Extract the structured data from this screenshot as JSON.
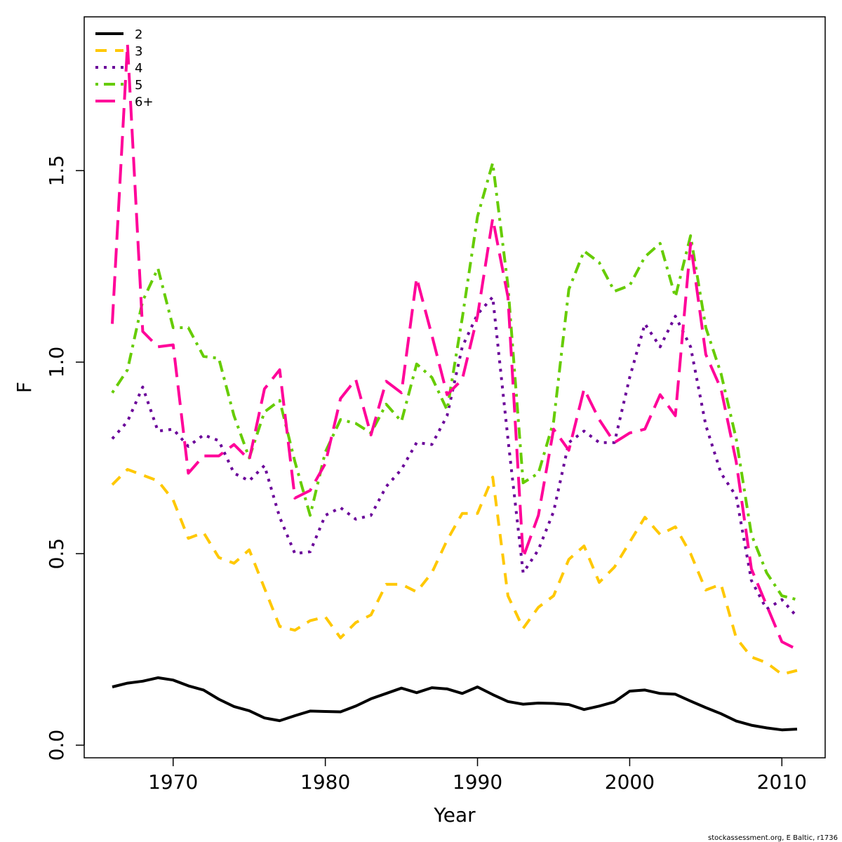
{
  "chart_data": {
    "type": "line",
    "title": "",
    "xlabel": "Year",
    "ylabel": "F",
    "xlim": [
      1965,
      2012
    ],
    "ylim": [
      0,
      1.85
    ],
    "x_ticks": [
      1970,
      1980,
      1990,
      2000,
      2010
    ],
    "y_ticks": [
      0.0,
      0.5,
      1.0,
      1.5
    ],
    "y_tick_labels": [
      "0.0",
      "0.5",
      "1.0",
      "1.5"
    ],
    "legend_position": "top-left",
    "grid": false,
    "x": [
      1966,
      1967,
      1968,
      1969,
      1970,
      1971,
      1972,
      1973,
      1974,
      1975,
      1976,
      1977,
      1978,
      1979,
      1980,
      1981,
      1982,
      1983,
      1984,
      1985,
      1986,
      1987,
      1988,
      1989,
      1990,
      1991,
      1992,
      1993,
      1994,
      1995,
      1996,
      1997,
      1998,
      1999,
      2000,
      2001,
      2002,
      2003,
      2004,
      2005,
      2006,
      2007,
      2008,
      2009,
      2010,
      2011
    ],
    "series": [
      {
        "name": "2",
        "color": "#000000",
        "dash": "solid",
        "values": [
          0.152,
          0.162,
          0.167,
          0.176,
          0.17,
          0.155,
          0.144,
          0.12,
          0.101,
          0.09,
          0.071,
          0.064,
          0.077,
          0.089,
          0.088,
          0.087,
          0.102,
          0.121,
          0.135,
          0.149,
          0.137,
          0.15,
          0.147,
          0.135,
          0.152,
          0.132,
          0.114,
          0.107,
          0.11,
          0.109,
          0.106,
          0.093,
          0.102,
          0.113,
          0.141,
          0.144,
          0.135,
          0.133,
          0.115,
          0.098,
          0.082,
          0.063,
          0.052,
          0.045,
          0.04,
          0.042
        ]
      },
      {
        "name": "3",
        "color": "#FFC800",
        "dash": "dashed",
        "values": [
          0.68,
          0.72,
          0.705,
          0.69,
          0.64,
          0.54,
          0.555,
          0.49,
          0.475,
          0.51,
          0.41,
          0.31,
          0.3,
          0.325,
          0.335,
          0.28,
          0.32,
          0.34,
          0.42,
          0.42,
          0.4,
          0.45,
          0.535,
          0.605,
          0.605,
          0.7,
          0.39,
          0.305,
          0.36,
          0.39,
          0.485,
          0.52,
          0.425,
          0.465,
          0.53,
          0.595,
          0.55,
          0.57,
          0.5,
          0.405,
          0.42,
          0.28,
          0.23,
          0.215,
          0.185,
          0.195
        ]
      },
      {
        "name": "4",
        "color": "#6A0099",
        "dash": "dotted",
        "values": [
          0.8,
          0.845,
          0.935,
          0.82,
          0.825,
          0.78,
          0.81,
          0.795,
          0.71,
          0.69,
          0.73,
          0.595,
          0.5,
          0.505,
          0.6,
          0.62,
          0.59,
          0.6,
          0.675,
          0.72,
          0.79,
          0.785,
          0.86,
          1.04,
          1.125,
          1.17,
          0.8,
          0.45,
          0.51,
          0.61,
          0.79,
          0.82,
          0.79,
          0.79,
          0.96,
          1.1,
          1.04,
          1.12,
          1.04,
          0.835,
          0.71,
          0.65,
          0.43,
          0.355,
          0.38,
          0.335
        ]
      },
      {
        "name": "5",
        "color": "#66CC00",
        "dash": "dotdash",
        "values": [
          0.92,
          0.98,
          1.16,
          1.245,
          1.09,
          1.09,
          1.015,
          1.01,
          0.86,
          0.75,
          0.87,
          0.9,
          0.74,
          0.6,
          0.765,
          0.85,
          0.84,
          0.815,
          0.89,
          0.845,
          0.995,
          0.96,
          0.875,
          1.115,
          1.38,
          1.52,
          1.2,
          0.685,
          0.71,
          0.845,
          1.19,
          1.29,
          1.26,
          1.185,
          1.2,
          1.275,
          1.31,
          1.17,
          1.33,
          1.09,
          0.97,
          0.8,
          0.55,
          0.45,
          0.39,
          0.38
        ]
      },
      {
        "name": "6+",
        "color": "#FF0099",
        "dash": "longdash",
        "values": [
          1.1,
          1.83,
          1.08,
          1.04,
          1.045,
          0.71,
          0.755,
          0.755,
          0.785,
          0.745,
          0.93,
          0.98,
          0.645,
          0.665,
          0.735,
          0.905,
          0.955,
          0.81,
          0.95,
          0.92,
          1.22,
          1.07,
          0.915,
          0.955,
          1.12,
          1.375,
          1.17,
          0.49,
          0.6,
          0.825,
          0.77,
          0.93,
          0.85,
          0.79,
          0.815,
          0.825,
          0.915,
          0.86,
          1.31,
          1.02,
          0.93,
          0.74,
          0.46,
          0.365,
          0.27,
          0.25
        ]
      }
    ]
  },
  "footer": {
    "credit": "stockassessment.org, E Baltic, r1736"
  }
}
